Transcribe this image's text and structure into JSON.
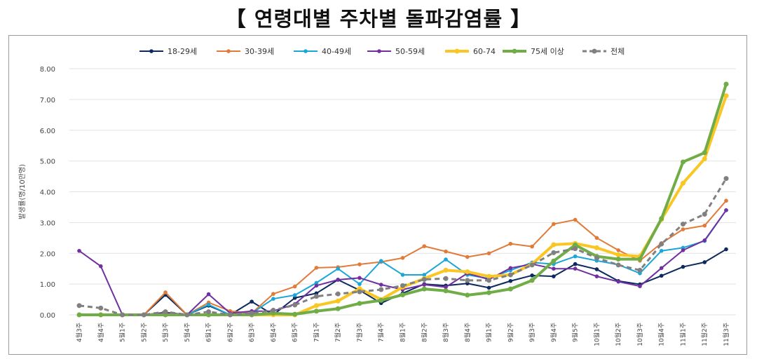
{
  "title": "【 연령대별 주차별 돌파감염률 】",
  "chart_data": {
    "type": "line",
    "ylabel": "발생률(명/10만명)",
    "ylim": [
      0,
      8
    ],
    "yticks": [
      "0.00",
      "1.00",
      "2.00",
      "3.00",
      "4.00",
      "5.00",
      "6.00",
      "7.00",
      "8.00"
    ],
    "legend_position": "top",
    "categories": [
      "4월3주",
      "4월4주",
      "5월1주",
      "5월2주",
      "5월3주",
      "5월4주",
      "6월1주",
      "6월2주",
      "6월3주",
      "6월4주",
      "6월5주",
      "7월1주",
      "7월2주",
      "7월3주",
      "7월4주",
      "8월1주",
      "8월2주",
      "8월3주",
      "8월4주",
      "9월1주",
      "9월2주",
      "9월3주",
      "9월4주",
      "9월5주",
      "10월1주",
      "10월2주",
      "10월3주",
      "10월4주",
      "11월1주",
      "11월2주",
      "11월3주"
    ],
    "series": [
      {
        "name": "18-29세",
        "color": "#0d2a5e",
        "width": 2,
        "dash": false,
        "values": [
          0,
          0,
          0,
          0,
          0.65,
          0,
          0.3,
          0,
          0.43,
          0,
          0.55,
          0.7,
          1.14,
          0.8,
          0.38,
          0.7,
          1.0,
          0.95,
          1.02,
          0.88,
          1.1,
          1.28,
          1.25,
          1.65,
          1.48,
          1.1,
          0.99,
          1.27,
          1.56,
          1.71,
          2.13
        ]
      },
      {
        "name": "30-39세",
        "color": "#e07b39",
        "width": 2,
        "dash": false,
        "values": [
          0,
          0,
          0,
          0,
          0.73,
          0,
          0.4,
          0.12,
          0.05,
          0.68,
          0.92,
          1.53,
          1.55,
          1.64,
          1.72,
          1.85,
          2.23,
          2.06,
          1.88,
          2.0,
          2.31,
          2.22,
          2.95,
          3.09,
          2.5,
          2.1,
          1.76,
          2.33,
          2.78,
          2.9,
          3.71
        ]
      },
      {
        "name": "40-49세",
        "color": "#1aa7d8",
        "width": 2,
        "dash": false,
        "values": [
          0,
          0,
          0,
          0,
          0.05,
          0,
          0.33,
          0,
          0.05,
          0.52,
          0.64,
          1.04,
          1.5,
          1.0,
          1.75,
          1.3,
          1.3,
          1.8,
          1.3,
          1.18,
          1.45,
          1.7,
          1.65,
          1.9,
          1.76,
          1.63,
          1.35,
          2.08,
          2.18,
          2.4,
          3.4
        ]
      },
      {
        "name": "50-59세",
        "color": "#7030a0",
        "width": 2,
        "dash": false,
        "values": [
          2.08,
          1.58,
          0,
          0,
          0.08,
          0,
          0.67,
          0.05,
          0.12,
          0.12,
          0.35,
          0.95,
          1.14,
          1.2,
          0.98,
          0.82,
          0.98,
          0.9,
          1.35,
          1.15,
          1.52,
          1.65,
          1.5,
          1.5,
          1.25,
          1.08,
          0.93,
          1.52,
          2.1,
          2.42,
          3.4
        ]
      },
      {
        "name": "60-74",
        "color": "#f9c623",
        "width": 4,
        "dash": false,
        "values": [
          0,
          0,
          0,
          0,
          0,
          0,
          0,
          0,
          0,
          0,
          0,
          0.3,
          0.45,
          0.85,
          0.5,
          0.9,
          1.18,
          1.45,
          1.4,
          1.25,
          1.3,
          1.65,
          2.28,
          2.32,
          2.18,
          1.95,
          1.9,
          3.1,
          4.28,
          5.07,
          7.12
        ]
      },
      {
        "name": "75세 이상",
        "color": "#70ad47",
        "width": 4,
        "dash": false,
        "values": [
          0,
          0,
          0,
          0,
          0,
          0,
          0,
          0,
          0,
          0.05,
          0.02,
          0.12,
          0.2,
          0.37,
          0.47,
          0.65,
          0.84,
          0.78,
          0.64,
          0.72,
          0.84,
          1.12,
          1.75,
          2.27,
          1.9,
          1.81,
          1.81,
          3.13,
          4.97,
          5.27,
          7.5
        ]
      },
      {
        "name": "전체",
        "color": "#808080",
        "width": 3,
        "dash": true,
        "values": [
          0.3,
          0.22,
          0,
          0,
          0.1,
          0,
          0.1,
          0,
          0.05,
          0.15,
          0.32,
          0.6,
          0.68,
          0.75,
          0.82,
          0.95,
          1.15,
          1.18,
          1.12,
          1.12,
          1.3,
          1.62,
          2.02,
          2.15,
          1.85,
          1.62,
          1.45,
          2.3,
          2.95,
          3.27,
          4.43
        ]
      }
    ]
  }
}
